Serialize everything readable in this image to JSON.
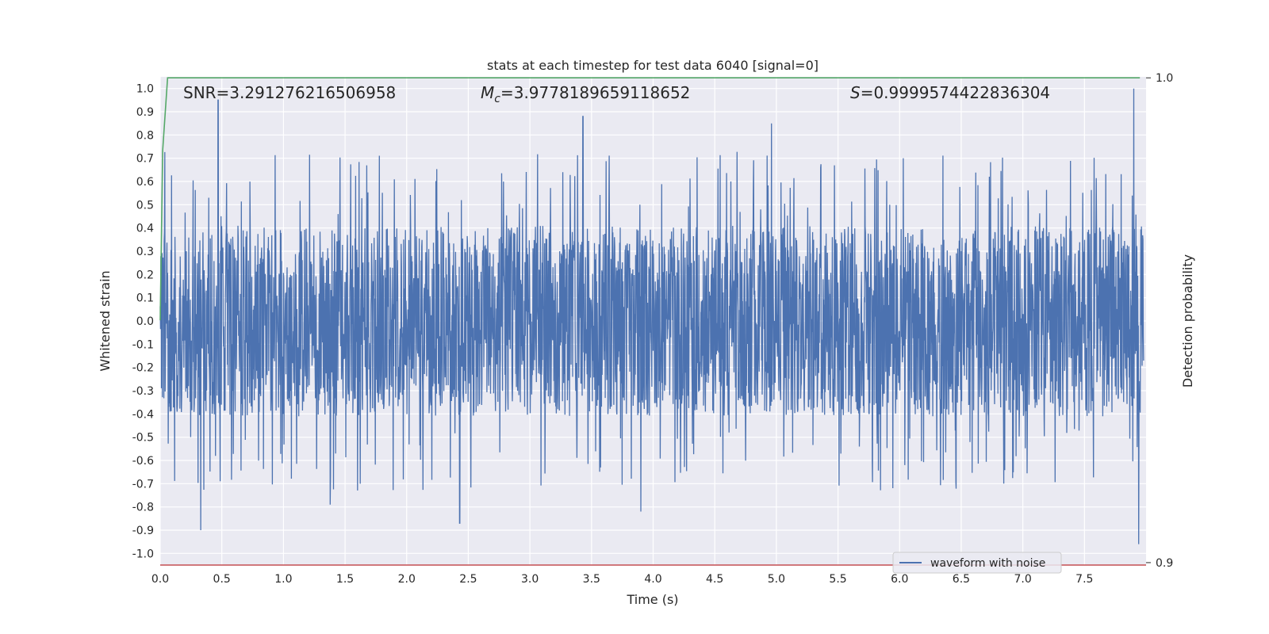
{
  "chart_data": {
    "type": "line",
    "title": "stats at each timestep for test data 6040 [signal=0]",
    "xlabel": "Time (s)",
    "ylabel": "Whitened strain",
    "y2label": "Detection probability",
    "xlim": [
      0.0,
      8.0
    ],
    "ylim": [
      -1.05,
      1.05
    ],
    "y2lim": [
      0.8995,
      1.0002
    ],
    "x_ticks": [
      "0.0",
      "0.5",
      "1.0",
      "1.5",
      "2.0",
      "2.5",
      "3.0",
      "3.5",
      "4.0",
      "4.5",
      "5.0",
      "5.5",
      "6.0",
      "6.5",
      "7.0",
      "7.5"
    ],
    "y_ticks": [
      "1.0",
      "0.9",
      "0.8",
      "0.7",
      "0.6",
      "0.5",
      "0.4",
      "0.3",
      "0.2",
      "0.1",
      "0.0",
      "-0.1",
      "-0.2",
      "-0.3",
      "-0.4",
      "-0.5",
      "-0.6",
      "-0.7",
      "-0.8",
      "-0.9",
      "-1.0"
    ],
    "y2_ticks": [
      "1.0",
      "0.9"
    ],
    "grid": true,
    "legend": {
      "position": "lower-right",
      "entries": [
        "waveform with noise"
      ]
    },
    "annotations": {
      "snr": "SNR=3.291276216506958",
      "mc_symbol": "M",
      "mc_sub": "c",
      "mc_value": "=3.9778189659118652",
      "s_symbol": "S",
      "s_value": "=0.9999574422836304"
    },
    "series": [
      {
        "name": "waveform with noise",
        "axis": "left",
        "color": "#4c72b0",
        "style": "dense whitened noise, envelope about ±0.45 with spikes up to ±1.0",
        "peaks": [
          {
            "x": 0.33,
            "y": -0.9
          },
          {
            "x": 0.47,
            "y": 0.95
          },
          {
            "x": 1.38,
            "y": -0.79
          },
          {
            "x": 2.43,
            "y": -0.87
          },
          {
            "x": 3.43,
            "y": 0.88
          },
          {
            "x": 3.9,
            "y": -0.82
          },
          {
            "x": 4.96,
            "y": 0.85
          },
          {
            "x": 7.9,
            "y": 1.0
          },
          {
            "x": 7.94,
            "y": -0.96
          }
        ]
      },
      {
        "axis": "right",
        "color": "#55a868",
        "points": [
          [
            0.0,
            0.95
          ],
          [
            0.02,
            0.985
          ],
          [
            0.06,
            1.0
          ],
          [
            7.95,
            1.0
          ]
        ]
      },
      {
        "axis": "right",
        "color": "#c44e52",
        "points": [
          [
            0.0,
            0.8995
          ],
          [
            8.0,
            0.8995
          ]
        ]
      }
    ]
  }
}
